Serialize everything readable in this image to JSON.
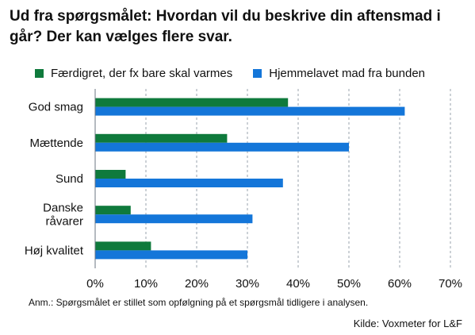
{
  "title": "Ud fra spørgsmålet: Hvordan vil du beskrive din aftensmad i går? Der kan vælges flere svar.",
  "note": "Anm.: Spørgsmålet er stillet som opfølgning på et spørgsmål tidligere i analysen.",
  "source": "Kilde: Voxmeter for L&F",
  "chart_data": {
    "type": "bar",
    "orientation": "horizontal",
    "title": "Ud fra spørgsmålet: Hvordan vil du beskrive din aftensmad i går? Der kan vælges flere svar.",
    "categories": [
      [
        "God smag"
      ],
      [
        "Mættende"
      ],
      [
        "Sund"
      ],
      [
        "Danske",
        "råvarer"
      ],
      [
        "Høj kvalitet"
      ]
    ],
    "category_labels": [
      "God smag",
      "Mættende",
      "Sund",
      "Danske råvarer",
      "Høj kvalitet"
    ],
    "series": [
      {
        "name": "Færdigret, der fx bare skal varmes",
        "color": "#0f7a3c",
        "values": [
          38,
          26,
          6,
          7,
          11
        ]
      },
      {
        "name": "Hjemmelavet mad fra bunden",
        "color": "#1476d9",
        "values": [
          61,
          50,
          37,
          31,
          30
        ]
      }
    ],
    "xlim": [
      0,
      70
    ],
    "xticks": [
      0,
      10,
      20,
      30,
      40,
      50,
      60,
      70
    ],
    "xtick_labels": [
      "0%",
      "10%",
      "20%",
      "30%",
      "40%",
      "50%",
      "60%",
      "70%"
    ],
    "unit": "%",
    "grid": "vertical dashed",
    "legend": "top"
  }
}
